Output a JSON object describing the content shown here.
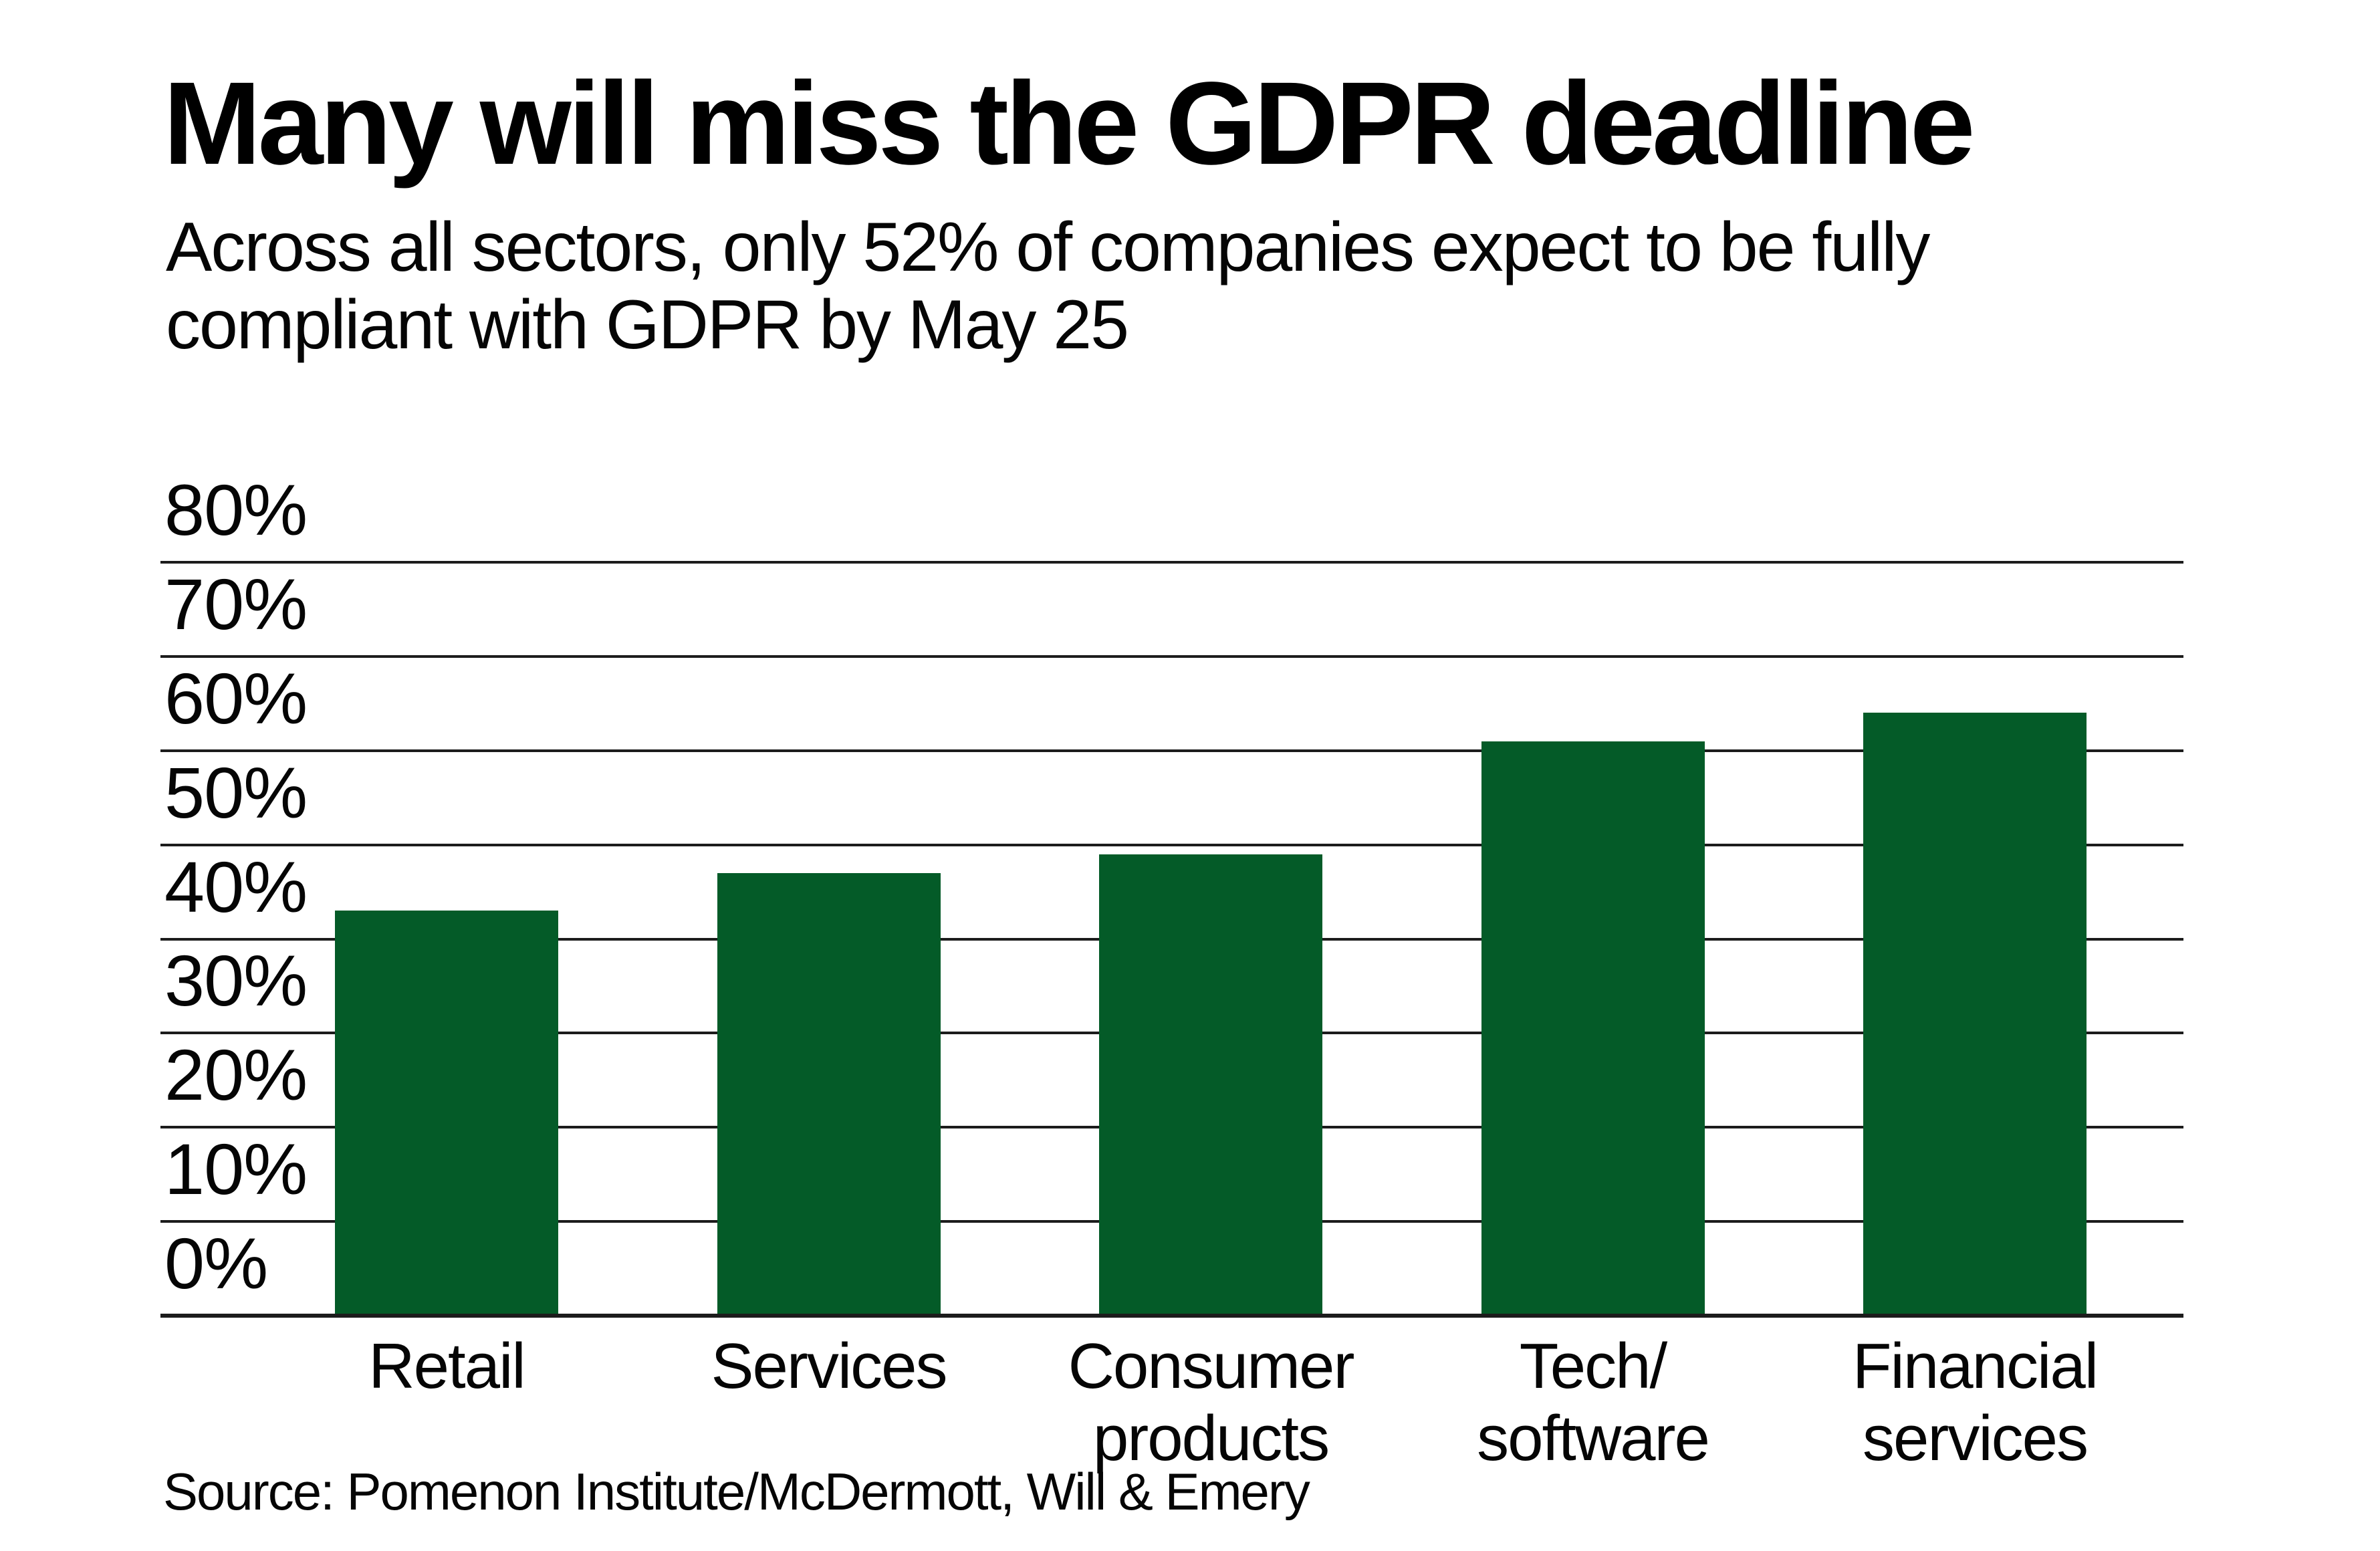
{
  "chart_data": {
    "type": "bar",
    "title": "Many will miss the GDPR deadline",
    "subtitle_lines": [
      "Across all sectors, only 52% of companies expect to be fully",
      "compliant with GDPR by May 25"
    ],
    "categories": [
      "Retail",
      "Services",
      "Consumer\nproducts",
      "Tech/\nsoftware",
      "Financial\nservices"
    ],
    "values": [
      43,
      47,
      49,
      61,
      64
    ],
    "unit": "%",
    "ylim": [
      0,
      80
    ],
    "y_ticks": [
      "0%",
      "10%",
      "20%",
      "30%",
      "40%",
      "50%",
      "60%",
      "70%",
      "80%"
    ],
    "grid": "horizontal",
    "legend": "none",
    "bar_color": "#045b28",
    "grid_color": "#1c1c1c",
    "source": "Source: Pomenon Institute/McDermott, Will & Emery"
  }
}
